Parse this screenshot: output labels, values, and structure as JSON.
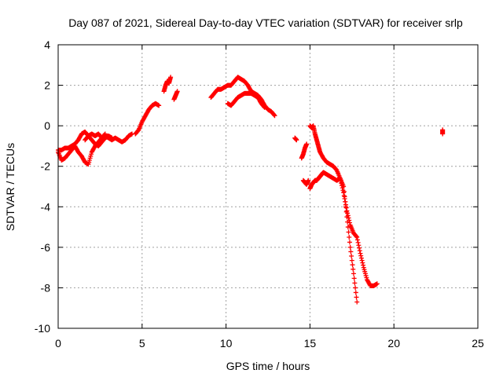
{
  "chart_data": {
    "type": "scatter",
    "title": "Day 087 of 2021, Sidereal Day-to-day VTEC variation (SDTVAR) for receiver srlp",
    "xlabel": "GPS time / hours",
    "ylabel": "SDTVAR / TECUs",
    "xlim": [
      0,
      25
    ],
    "ylim": [
      -10,
      4
    ],
    "xticks": [
      0,
      5,
      10,
      15,
      20,
      25
    ],
    "yticks": [
      -10,
      -8,
      -6,
      -4,
      -2,
      0,
      2,
      4
    ],
    "xtick_labels": [
      "0",
      "5",
      "10",
      "15",
      "20",
      "25"
    ],
    "ytick_labels": [
      "-10",
      "-8",
      "-6",
      "-4",
      "-2",
      "0",
      "2",
      "4"
    ],
    "grid": true,
    "marker": "+",
    "color": "#ff0000",
    "series": [
      {
        "name": "SDTVAR",
        "segments": [
          {
            "x": [
              0.0,
              0.2,
              0.4,
              0.6,
              0.8,
              1.0,
              1.2,
              1.4,
              1.6,
              1.8,
              2.0,
              2.2,
              2.4,
              2.6,
              2.8,
              3.0,
              3.2,
              3.4,
              3.6,
              3.8,
              4.0,
              4.2,
              4.4
            ],
            "y": [
              -1.3,
              -1.7,
              -1.6,
              -1.4,
              -1.2,
              -1.0,
              -1.3,
              -1.5,
              -1.8,
              -1.9,
              -1.3,
              -1.0,
              -0.8,
              -0.6,
              -0.5,
              -0.6,
              -0.7,
              -0.6,
              -0.7,
              -0.8,
              -0.7,
              -0.5,
              -0.4
            ]
          },
          {
            "x": [
              0.0,
              0.2,
              0.4,
              0.6,
              0.8,
              1.0,
              1.2,
              1.4,
              1.6,
              1.8,
              2.0,
              2.2,
              2.4,
              2.6,
              2.8,
              3.0,
              3.2
            ],
            "y": [
              -1.2,
              -1.2,
              -1.1,
              -1.1,
              -1.0,
              -0.9,
              -0.7,
              -0.4,
              -0.3,
              -0.5,
              -0.7,
              -0.9,
              -1.0,
              -0.8,
              -0.6,
              -0.5,
              -0.6
            ]
          },
          {
            "x": [
              1.6,
              1.8,
              2.0,
              2.2,
              2.4,
              2.6,
              2.8
            ],
            "y": [
              -0.7,
              -0.5,
              -0.4,
              -0.5,
              -0.4,
              -0.6,
              -0.4
            ]
          },
          {
            "x": [
              4.6,
              4.8,
              5.0,
              5.2,
              5.4,
              5.6,
              5.8,
              6.0
            ],
            "y": [
              -0.4,
              -0.2,
              0.2,
              0.5,
              0.8,
              1.0,
              1.1,
              1.0
            ]
          },
          {
            "x": [
              6.3,
              6.4,
              6.5,
              6.6,
              6.7
            ],
            "y": [
              1.7,
              2.0,
              2.2,
              2.1,
              2.4
            ]
          },
          {
            "x": [
              6.9,
              7.0,
              7.1
            ],
            "y": [
              1.3,
              1.5,
              1.7
            ]
          },
          {
            "x": [
              9.1,
              9.3,
              9.5,
              9.7,
              9.9,
              10.1,
              10.3,
              10.5,
              10.7,
              10.9,
              11.1,
              11.3,
              11.5,
              11.7,
              11.9,
              12.1,
              12.3,
              12.5,
              12.7,
              12.9
            ],
            "y": [
              1.4,
              1.6,
              1.8,
              1.8,
              1.9,
              2.0,
              2.0,
              2.2,
              2.4,
              2.3,
              2.2,
              2.0,
              1.7,
              1.6,
              1.5,
              1.3,
              1.0,
              0.8,
              0.7,
              0.5
            ]
          },
          {
            "x": [
              10.1,
              10.3,
              10.5,
              10.7,
              10.9,
              11.1,
              11.3,
              11.5,
              11.7,
              11.9,
              12.1,
              12.3
            ],
            "y": [
              1.1,
              1.0,
              1.2,
              1.4,
              1.5,
              1.6,
              1.6,
              1.6,
              1.5,
              1.4,
              1.1,
              0.9
            ]
          },
          {
            "x": [
              14.1,
              14.2
            ],
            "y": [
              -0.6,
              -0.7
            ]
          },
          {
            "x": [
              14.5,
              14.6,
              14.7,
              14.8
            ],
            "y": [
              -1.6,
              -1.4,
              -1.1,
              -0.9
            ]
          },
          {
            "x": [
              14.6,
              14.7,
              14.8,
              14.9
            ],
            "y": [
              -2.7,
              -2.8,
              -2.9,
              -2.7
            ]
          },
          {
            "x": [
              15.0,
              15.1,
              15.2,
              15.3,
              15.4,
              15.5,
              15.6,
              15.8,
              16.0,
              16.2,
              16.4,
              16.6,
              16.8,
              17.0,
              17.2,
              17.4,
              17.6,
              17.8,
              18.0,
              18.2,
              18.4,
              18.6,
              18.8,
              19.0
            ],
            "y": [
              0.0,
              -0.1,
              0.0,
              -0.4,
              -0.7,
              -1.0,
              -1.3,
              -1.6,
              -1.8,
              -1.9,
              -2.0,
              -2.2,
              -2.6,
              -3.3,
              -4.2,
              -4.9,
              -5.3,
              -5.5,
              -6.3,
              -7.0,
              -7.6,
              -7.9,
              -7.9,
              -7.8
            ]
          },
          {
            "x": [
              15.0,
              15.1,
              15.2,
              15.3,
              15.4,
              15.5,
              15.6,
              15.7,
              15.8,
              16.0,
              16.2,
              16.4,
              16.6,
              16.8,
              17.0,
              17.2,
              17.4,
              17.6,
              17.8
            ],
            "y": [
              -3.1,
              -2.9,
              -2.8,
              -2.7,
              -2.7,
              -2.6,
              -2.5,
              -2.4,
              -2.3,
              -2.4,
              -2.5,
              -2.6,
              -2.7,
              -2.6,
              -3.0,
              -4.5,
              -6.0,
              -7.3,
              -8.7
            ]
          },
          {
            "x": [
              22.9,
              22.9
            ],
            "y": [
              -0.2,
              -0.4
            ]
          }
        ]
      }
    ]
  }
}
